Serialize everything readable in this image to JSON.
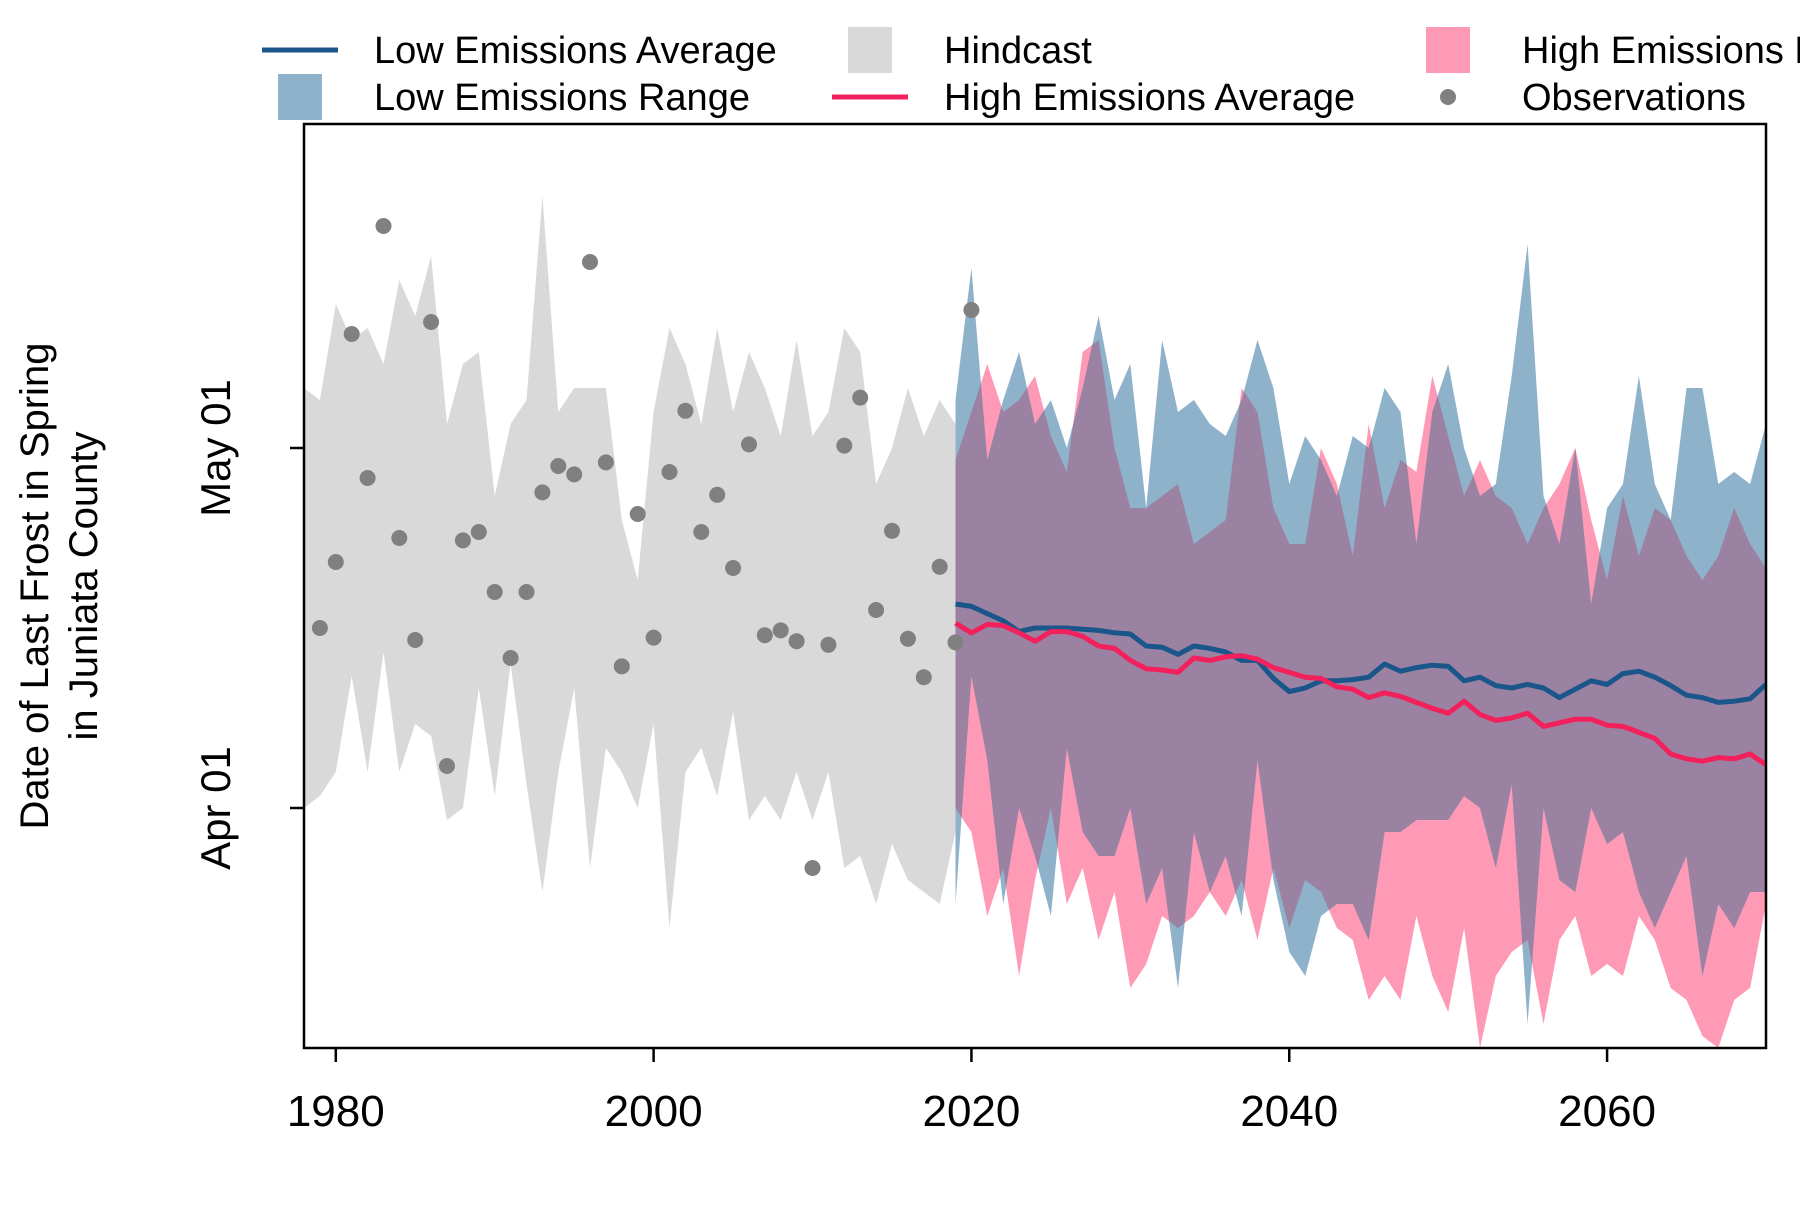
{
  "chart_data": {
    "type": "line",
    "ylabel_line1": "Date of Last Frost in Spring",
    "ylabel_line2": "in Juniata County",
    "xlabel": "",
    "xlim": [
      1978,
      2070
    ],
    "x_ticks": [
      1980,
      2000,
      2020,
      2040,
      2060
    ],
    "y_unit": "day of year",
    "ylim": [
      71,
      148
    ],
    "y_ticks": [
      {
        "value": 91,
        "label": "Apr 01"
      },
      {
        "value": 121,
        "label": "May 01"
      }
    ],
    "legend": {
      "position": "top",
      "entries": [
        {
          "key": "low_avg",
          "label": "Low Emissions Average",
          "symbol": "line",
          "color": "#1a5689"
        },
        {
          "key": "low_range",
          "label": "Low Emissions Range",
          "symbol": "box",
          "color": "#8fb2cb"
        },
        {
          "key": "hindcast",
          "label": "Hindcast",
          "symbol": "box",
          "color": "#d9d9d9"
        },
        {
          "key": "high_avg",
          "label": "High Emissions Average",
          "symbol": "line",
          "color": "#f2215c"
        },
        {
          "key": "high_range",
          "label": "High Emissions Range",
          "symbol": "box",
          "color": "#ff9ab6"
        },
        {
          "key": "obs",
          "label": "Observations",
          "symbol": "point",
          "color": "#808080"
        }
      ]
    },
    "hindcast": {
      "x": [
        1978,
        1979,
        1980,
        1981,
        1982,
        1983,
        1984,
        1985,
        1986,
        1987,
        1988,
        1989,
        1990,
        1991,
        1992,
        1993,
        1994,
        1995,
        1996,
        1997,
        1998,
        1999,
        2000,
        2001,
        2002,
        2003,
        2004,
        2005,
        2006,
        2007,
        2008,
        2009,
        2010,
        2011,
        2012,
        2013,
        2014,
        2015,
        2016,
        2017,
        2018,
        2019
      ],
      "upper": [
        126,
        125,
        133,
        130,
        131,
        128,
        135,
        132,
        137,
        123,
        128,
        129,
        117,
        123,
        125,
        142,
        124,
        126,
        126,
        126,
        115,
        110,
        124,
        131,
        128,
        123,
        131,
        124,
        129,
        126,
        122,
        130,
        122,
        124,
        131,
        129,
        118,
        121,
        126,
        122,
        125,
        123
      ],
      "lower": [
        91,
        92,
        94,
        102,
        94,
        104,
        94,
        98,
        97,
        90,
        91,
        101,
        92,
        103,
        93,
        84,
        94,
        101,
        86,
        96,
        94,
        91,
        98,
        81,
        94,
        96,
        92,
        99,
        90,
        92,
        90,
        94,
        90,
        94,
        86,
        87,
        83,
        88,
        85,
        84,
        83,
        89
      ]
    },
    "low_range": {
      "x": [
        2019,
        2020,
        2021,
        2022,
        2023,
        2024,
        2025,
        2026,
        2027,
        2028,
        2029,
        2030,
        2031,
        2032,
        2033,
        2034,
        2035,
        2036,
        2037,
        2038,
        2039,
        2040,
        2041,
        2042,
        2043,
        2044,
        2045,
        2046,
        2047,
        2048,
        2049,
        2050,
        2051,
        2052,
        2053,
        2054,
        2055,
        2056,
        2057,
        2058,
        2059,
        2060,
        2061,
        2062,
        2063,
        2064,
        2065,
        2066,
        2067,
        2068,
        2069,
        2070
      ],
      "upper": [
        125,
        136,
        120,
        125,
        129,
        123,
        125,
        121,
        126,
        132,
        125,
        128,
        116,
        130,
        124,
        125,
        123,
        122,
        125,
        130,
        126,
        118,
        122,
        120,
        117,
        122,
        121,
        126,
        124,
        113,
        124,
        128,
        121,
        117,
        118,
        127,
        138,
        117,
        113,
        121,
        108,
        116,
        118,
        127,
        118,
        115,
        126,
        126,
        118,
        119,
        118,
        123
      ],
      "lower": [
        83,
        102,
        95,
        83,
        91,
        87,
        82,
        96,
        89,
        87,
        87,
        91,
        83,
        86,
        76,
        89,
        84,
        87,
        82,
        95,
        85,
        79,
        77,
        82,
        83,
        83,
        80,
        89,
        89,
        90,
        90,
        90,
        92,
        91,
        86,
        93,
        73,
        91,
        85,
        84,
        91,
        88,
        89,
        84,
        81,
        84,
        87,
        77,
        83,
        81,
        84,
        84
      ]
    },
    "high_range": {
      "x": [
        2019,
        2020,
        2021,
        2022,
        2023,
        2024,
        2025,
        2026,
        2027,
        2028,
        2029,
        2030,
        2031,
        2032,
        2033,
        2034,
        2035,
        2036,
        2037,
        2038,
        2039,
        2040,
        2041,
        2042,
        2043,
        2044,
        2045,
        2046,
        2047,
        2048,
        2049,
        2050,
        2051,
        2052,
        2053,
        2054,
        2055,
        2056,
        2057,
        2058,
        2059,
        2060,
        2061,
        2062,
        2063,
        2064,
        2065,
        2066,
        2067,
        2068,
        2069,
        2070
      ],
      "upper": [
        120,
        124,
        128,
        124,
        125,
        127,
        122,
        119,
        129,
        130,
        121,
        116,
        116,
        117,
        118,
        113,
        114,
        115,
        126,
        124,
        116,
        113,
        113,
        121,
        118,
        112,
        123,
        116,
        120,
        119,
        127,
        122,
        117,
        120,
        117,
        116,
        113,
        116,
        118,
        121,
        115,
        110,
        117,
        112,
        116,
        115,
        112,
        110,
        112,
        116,
        113,
        111
      ],
      "lower": [
        91,
        89,
        82,
        86,
        77,
        85,
        91,
        83,
        86,
        80,
        84,
        76,
        78,
        82,
        81,
        82,
        84,
        82,
        85,
        80,
        86,
        81,
        85,
        84,
        81,
        80,
        75,
        77,
        75,
        82,
        77,
        74,
        81,
        71,
        77,
        79,
        80,
        73,
        80,
        82,
        77,
        78,
        77,
        82,
        80,
        76,
        75,
        72,
        71,
        75,
        76,
        83
      ]
    },
    "low_average": {
      "x": [
        2019,
        2020,
        2021,
        2022,
        2023,
        2024,
        2025,
        2026,
        2027,
        2028,
        2029,
        2030,
        2031,
        2032,
        2033,
        2034,
        2035,
        2036,
        2037,
        2038,
        2039,
        2040,
        2041,
        2042,
        2043,
        2044,
        2045,
        2046,
        2047,
        2048,
        2049,
        2050,
        2051,
        2052,
        2053,
        2054,
        2055,
        2056,
        2057,
        2058,
        2059,
        2060,
        2061,
        2062,
        2063,
        2064,
        2065,
        2066,
        2067,
        2068,
        2069,
        2070
      ],
      "values": [
        108,
        107.8,
        107.2,
        106.6,
        105.7,
        106,
        106,
        106,
        105.9,
        105.8,
        105.6,
        105.5,
        104.5,
        104.4,
        103.8,
        104.5,
        104.3,
        104,
        103.3,
        103.3,
        101.8,
        100.7,
        101,
        101.6,
        101.6,
        101.7,
        101.9,
        103,
        102.4,
        102.7,
        102.9,
        102.8,
        101.6,
        101.9,
        101.2,
        101,
        101.3,
        101,
        100.2,
        100.9,
        101.6,
        101.3,
        102.2,
        102.4,
        101.9,
        101.2,
        100.4,
        100.2,
        99.8,
        99.9,
        100.1,
        101.3
      ]
    },
    "high_average": {
      "x": [
        2019,
        2020,
        2021,
        2022,
        2023,
        2024,
        2025,
        2026,
        2027,
        2028,
        2029,
        2030,
        2031,
        2032,
        2033,
        2034,
        2035,
        2036,
        2037,
        2038,
        2039,
        2040,
        2041,
        2042,
        2043,
        2044,
        2045,
        2046,
        2047,
        2048,
        2049,
        2050,
        2051,
        2052,
        2053,
        2054,
        2055,
        2056,
        2057,
        2058,
        2059,
        2060,
        2061,
        2062,
        2063,
        2064,
        2065,
        2066,
        2067,
        2068,
        2069,
        2070
      ],
      "values": [
        106.4,
        105.6,
        106.3,
        106.2,
        105.6,
        104.9,
        105.7,
        105.7,
        105.3,
        104.5,
        104.3,
        103.3,
        102.6,
        102.5,
        102.3,
        103.5,
        103.3,
        103.6,
        103.7,
        103.4,
        102.7,
        102.3,
        101.9,
        101.8,
        101.1,
        100.9,
        100.2,
        100.6,
        100.3,
        99.8,
        99.3,
        98.9,
        99.9,
        98.8,
        98.3,
        98.5,
        98.9,
        97.8,
        98.1,
        98.4,
        98.4,
        97.9,
        97.8,
        97.3,
        96.8,
        95.5,
        95.1,
        94.9,
        95.2,
        95.1,
        95.5,
        94.6
      ]
    },
    "observations": {
      "x": [
        1979,
        1980,
        1981,
        1982,
        1983,
        1984,
        1985,
        1986,
        1987,
        1988,
        1989,
        1990,
        1991,
        1992,
        1993,
        1994,
        1995,
        1996,
        1997,
        1998,
        1999,
        2000,
        2001,
        2002,
        2003,
        2004,
        2005,
        2006,
        2007,
        2008,
        2009,
        2010,
        2011,
        2012,
        2013,
        2014,
        2015,
        2016,
        2017,
        2018,
        2019,
        2020
      ],
      "values": [
        106,
        111.5,
        130.5,
        118.5,
        139.5,
        113.5,
        105,
        131.5,
        94.5,
        113.3,
        114,
        109,
        103.5,
        109,
        117.3,
        119.5,
        118.8,
        136.5,
        119.8,
        102.8,
        115.5,
        105.2,
        119,
        124.1,
        114,
        117.1,
        111,
        121.3,
        105.4,
        105.8,
        104.9,
        86,
        104.6,
        121.2,
        125.2,
        107.5,
        114.1,
        105.1,
        101.9,
        111.1,
        104.8,
        132.5
      ]
    }
  }
}
